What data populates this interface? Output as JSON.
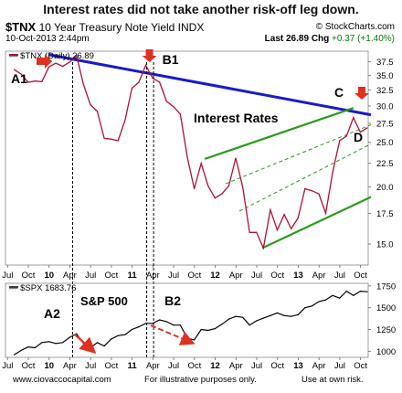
{
  "header": {
    "title": "Interest rates did not take another risk-off leg down.",
    "symbol": "$TNX",
    "description": "10 Year Treasury Note Yield INDX",
    "credit": "© StockCharts.com",
    "datetime": "10-Oct-2013 2:44pm",
    "last_label": "Last",
    "last_value": "26.89",
    "chg_label": "Chg",
    "chg_value": "+0.37",
    "chg_pct": "(+1.40%)"
  },
  "footer": {
    "site": "www.ciovaccocapital.com",
    "note1": "For illustrative purposes only.",
    "note2": "Use at own risk."
  },
  "colors": {
    "price_line": "#b0103a",
    "spx_line": "#000000",
    "trendline": "#1a1acc",
    "channel": "#2a9a1a",
    "arrow": "#e03020"
  },
  "chart_data": [
    {
      "type": "line",
      "name": "top-panel",
      "legend": "— $TNX (Daily) 26.89",
      "x_ticks": [
        "Jul",
        "Oct",
        "10",
        "Apr",
        "Jul",
        "Oct",
        "11",
        "Apr",
        "Jul",
        "Oct",
        "12",
        "Apr",
        "Jul",
        "Oct",
        "13",
        "Apr",
        "Jul",
        "Oct"
      ],
      "y_ticks": [
        15.0,
        17.5,
        20.0,
        22.5,
        25.0,
        27.5,
        30.0,
        32.5,
        35.0,
        37.5
      ],
      "ylim": [
        13.5,
        39.5
      ],
      "scale": "log",
      "annotations": [
        "A1",
        "B1",
        "C",
        "D",
        "Interest Rates"
      ],
      "series": [
        {
          "x": [
            "2009-07",
            "2009-08",
            "2009-09",
            "2009-10",
            "2009-11",
            "2009-12",
            "2010-01",
            "2010-02",
            "2010-03",
            "2010-04",
            "2010-05",
            "2010-06",
            "2010-07",
            "2010-08",
            "2010-09",
            "2010-10",
            "2010-11",
            "2010-12",
            "2011-01",
            "2011-02",
            "2011-03",
            "2011-04",
            "2011-05",
            "2011-06",
            "2011-07",
            "2011-08",
            "2011-09",
            "2011-10",
            "2011-11",
            "2011-12",
            "2012-01",
            "2012-02",
            "2012-03",
            "2012-04",
            "2012-05",
            "2012-06",
            "2012-07",
            "2012-08",
            "2012-09",
            "2012-10",
            "2012-11",
            "2012-12",
            "2013-01",
            "2013-02",
            "2013-03",
            "2013-04",
            "2013-05",
            "2013-06",
            "2013-07",
            "2013-08",
            "2013-09",
            "2013-10"
          ],
          "values": [
            36.0,
            35.2,
            33.8,
            34.0,
            33.9,
            36.5,
            37.2,
            36.6,
            37.4,
            38.6,
            33.4,
            30.2,
            29.2,
            25.5,
            25.4,
            25.2,
            27.9,
            32.8,
            33.8,
            36.8,
            34.5,
            33.8,
            30.7,
            29.9,
            28.8,
            23.2,
            19.8,
            22.5,
            20.1,
            18.9,
            19.3,
            20.1,
            23.1,
            20.0,
            15.9,
            15.9,
            14.7,
            17.8,
            16.1,
            17.4,
            16.2,
            17.1,
            19.8,
            19.6,
            19.3,
            17.5,
            21.5,
            25.2,
            25.8,
            28.3,
            26.3,
            26.89
          ]
        }
      ],
      "trendlines": [
        {
          "name": "blue-downtrend",
          "x": [
            "2009-12-15",
            "2013-11-01"
          ],
          "y": [
            38.8,
            28.7
          ]
        },
        {
          "name": "channel-upper",
          "x": [
            "2011-11-01",
            "2013-08-15"
          ],
          "y": [
            23.0,
            29.7
          ]
        },
        {
          "name": "channel-lower",
          "x": [
            "2012-07-10",
            "2013-11-01"
          ],
          "y": [
            14.7,
            19.0
          ]
        },
        {
          "name": "channel-mid-1",
          "x": [
            "2012-04-01",
            "2013-11-01"
          ],
          "y": [
            17.7,
            24.8
          ]
        },
        {
          "name": "channel-mid-2",
          "x": [
            "2012-02-01",
            "2013-11-01"
          ],
          "y": [
            20.3,
            27.3
          ]
        }
      ]
    },
    {
      "type": "line",
      "name": "bottom-panel",
      "legend": "— $SPX 1683.76",
      "x_ticks": [
        "Jul",
        "Oct",
        "10",
        "Apr",
        "Jul",
        "Oct",
        "11",
        "Apr",
        "Jul",
        "Oct",
        "12",
        "Apr",
        "Jul",
        "Oct",
        "13",
        "Apr",
        "Jul",
        "Oct"
      ],
      "y_ticks": [
        1000,
        1250,
        1500,
        1750
      ],
      "ylim": [
        930,
        1780
      ],
      "annotations": [
        "A2",
        "S&P 500",
        "B2"
      ],
      "series": [
        {
          "x": [
            "2009-07",
            "2009-08",
            "2009-09",
            "2009-10",
            "2009-11",
            "2009-12",
            "2010-01",
            "2010-02",
            "2010-03",
            "2010-04",
            "2010-05",
            "2010-06",
            "2010-07",
            "2010-08",
            "2010-09",
            "2010-10",
            "2010-11",
            "2010-12",
            "2011-01",
            "2011-02",
            "2011-03",
            "2011-04",
            "2011-05",
            "2011-06",
            "2011-07",
            "2011-08",
            "2011-09",
            "2011-10",
            "2011-11",
            "2011-12",
            "2012-01",
            "2012-02",
            "2012-03",
            "2012-04",
            "2012-05",
            "2012-06",
            "2012-07",
            "2012-08",
            "2012-09",
            "2012-10",
            "2012-11",
            "2012-12",
            "2013-01",
            "2013-02",
            "2013-03",
            "2013-04",
            "2013-05",
            "2013-06",
            "2013-07",
            "2013-08",
            "2013-09",
            "2013-10"
          ],
          "values": [
            960,
            1010,
            1050,
            1040,
            1100,
            1110,
            1090,
            1100,
            1160,
            1200,
            1090,
            1040,
            1100,
            1060,
            1140,
            1180,
            1190,
            1250,
            1280,
            1320,
            1320,
            1360,
            1340,
            1300,
            1300,
            1150,
            1130,
            1250,
            1240,
            1260,
            1310,
            1370,
            1400,
            1390,
            1300,
            1350,
            1380,
            1410,
            1440,
            1410,
            1400,
            1420,
            1500,
            1520,
            1570,
            1590,
            1640,
            1610,
            1690,
            1640,
            1690,
            1683.76
          ]
        }
      ]
    }
  ]
}
